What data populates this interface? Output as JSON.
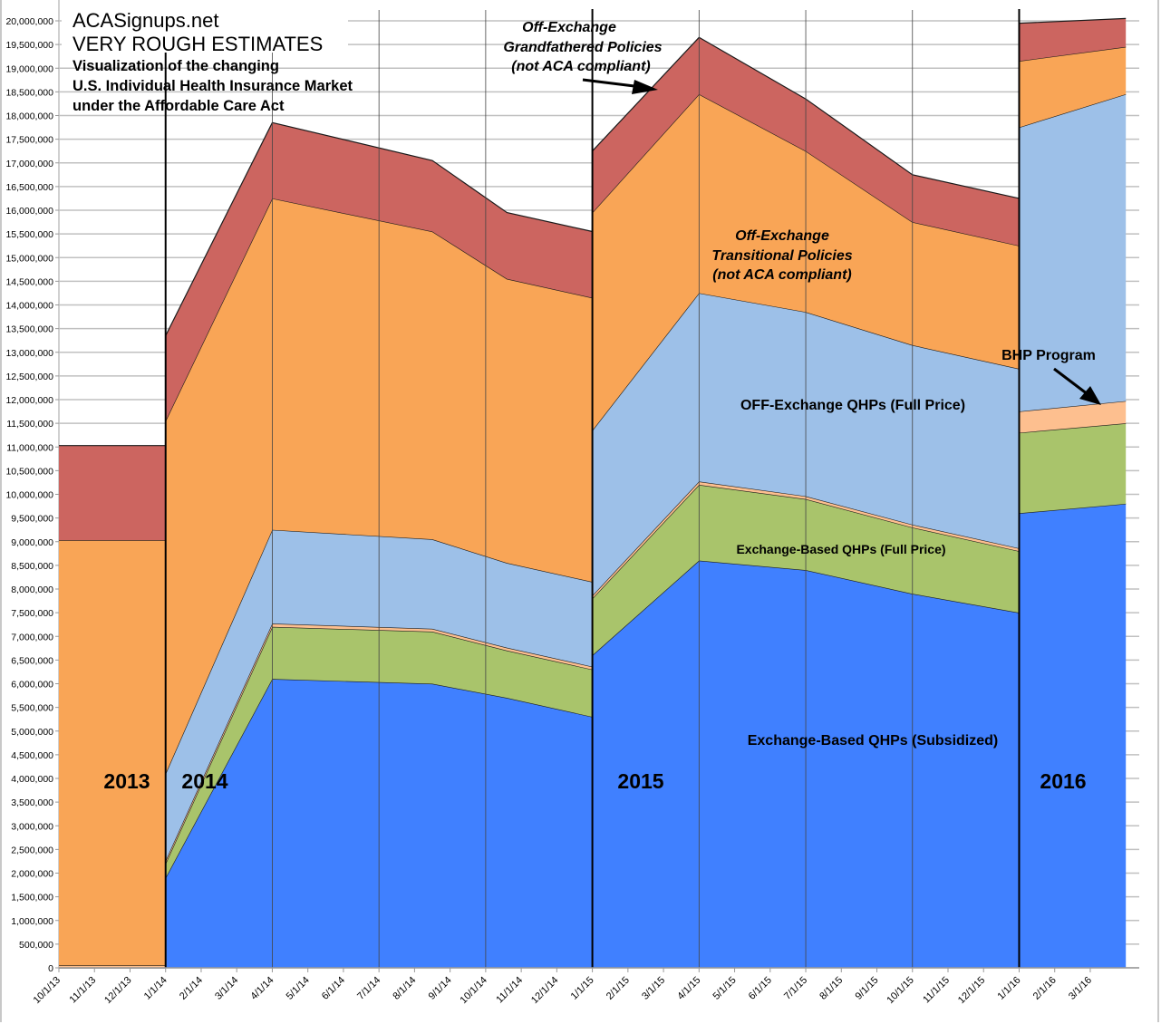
{
  "chart_data": {
    "type": "area",
    "title": "ACASignups.net",
    "subtitle": "VERY ROUGH ESTIMATES",
    "description_lines": [
      "Visualization of the changing",
      "U.S. Individual Health Insurance Market",
      "under the Affordable Care Act"
    ],
    "xlabel": "",
    "ylabel": "",
    "ylim": [
      0,
      20000000
    ],
    "y_ticks": [
      "0",
      "500,000",
      "1,000,000",
      "1,500,000",
      "2,000,000",
      "2,500,000",
      "3,000,000",
      "3,500,000",
      "4,000,000",
      "4,500,000",
      "5,000,000",
      "5,500,000",
      "6,000,000",
      "6,500,000",
      "7,000,000",
      "7,500,000",
      "8,000,000",
      "8,500,000",
      "9,000,000",
      "9,500,000",
      "10,000,000",
      "10,500,000",
      "11,000,000",
      "11,500,000",
      "12,000,000",
      "12,500,000",
      "13,000,000",
      "13,500,000",
      "14,000,000",
      "14,500,000",
      "15,000,000",
      "15,500,000",
      "16,000,000",
      "16,500,000",
      "17,000,000",
      "17,500,000",
      "18,000,000",
      "18,500,000",
      "19,000,000",
      "19,500,000",
      "20,000,000"
    ],
    "x_ticks": [
      "10/1/13",
      "11/1/13",
      "12/1/13",
      "1/1/14",
      "2/1/14",
      "3/1/14",
      "4/1/14",
      "5/1/14",
      "6/1/14",
      "7/1/14",
      "8/1/14",
      "9/1/14",
      "10/1/14",
      "11/1/14",
      "12/1/14",
      "1/1/15",
      "2/1/15",
      "3/1/15",
      "4/1/15",
      "5/1/15",
      "6/1/15",
      "7/1/15",
      "8/1/15",
      "9/1/15",
      "10/1/15",
      "11/1/15",
      "12/1/15",
      "1/1/16",
      "2/1/16",
      "3/1/16"
    ],
    "grid": true,
    "stacked": true,
    "series_order": [
      "subsidized",
      "exchange_full",
      "bhp",
      "off_exchange_qhp",
      "transitional",
      "grandfathered"
    ],
    "series": [
      {
        "key": "subsidized",
        "name": "Exchange-Based QHPs (Subsidized)",
        "color": "#4080ff"
      },
      {
        "key": "exchange_full",
        "name": "Exchange-Based QHPs (Full Price)",
        "color": "#a9c46b"
      },
      {
        "key": "bhp",
        "name": "BHP Program",
        "color": "#fdbf8f"
      },
      {
        "key": "off_exchange_qhp",
        "name": "OFF-Exchange QHPs (Full Price)",
        "color": "#9dc0e8"
      },
      {
        "key": "transitional",
        "name": "Off-Exchange Transitional Policies (not ACA compliant)",
        "color": "#f9a556"
      },
      {
        "key": "grandfathered",
        "name": "Off-Exchange Grandfathered Policies (not ACA compliant)",
        "color": "#cc6560"
      }
    ],
    "segments": [
      {
        "year": "2013",
        "x_months": [
          0,
          3
        ],
        "tops": {
          "subsidized": [
            0,
            0
          ],
          "exchange_full": [
            0,
            0
          ],
          "bhp": [
            50000,
            50000
          ],
          "off_exchange_qhp": [
            50000,
            50000
          ],
          "transitional": [
            9030000,
            9030000
          ],
          "grandfathered": [
            11030000,
            11030000
          ]
        }
      },
      {
        "year": "2014",
        "x_months": [
          3,
          6,
          10.5,
          12.6,
          15
        ],
        "tops": {
          "subsidized": [
            1900000,
            6100000,
            6000000,
            5700000,
            5300000
          ],
          "exchange_full": [
            2200000,
            7200000,
            7100000,
            6700000,
            6300000
          ],
          "bhp": [
            2260000,
            7270000,
            7160000,
            6760000,
            6360000
          ],
          "off_exchange_qhp": [
            4100000,
            9250000,
            9050000,
            8550000,
            8150000
          ],
          "transitional": [
            11550000,
            16250000,
            15550000,
            14550000,
            14150000
          ],
          "grandfathered": [
            13350000,
            17850000,
            17050000,
            15950000,
            15550000
          ]
        }
      },
      {
        "year": "2015",
        "x_months": [
          15,
          18,
          21,
          24,
          27
        ],
        "tops": {
          "subsidized": [
            6600000,
            8600000,
            8400000,
            7900000,
            7500000
          ],
          "exchange_full": [
            7800000,
            10200000,
            9900000,
            9300000,
            8800000
          ],
          "bhp": [
            7860000,
            10270000,
            9960000,
            9360000,
            8860000
          ],
          "off_exchange_qhp": [
            11350000,
            14250000,
            13850000,
            13150000,
            12650000
          ],
          "transitional": [
            15950000,
            18450000,
            17250000,
            15750000,
            15250000
          ],
          "grandfathered": [
            17250000,
            19650000,
            18350000,
            16750000,
            16250000
          ]
        }
      },
      {
        "year": "2016",
        "x_months": [
          27,
          30
        ],
        "tops": {
          "subsidized": [
            9600000,
            9800000
          ],
          "exchange_full": [
            11300000,
            11500000
          ],
          "bhp": [
            11750000,
            11970000
          ],
          "off_exchange_qhp": [
            17750000,
            18450000
          ],
          "transitional": [
            19150000,
            19450000
          ],
          "grandfathered": [
            19950000,
            20050000
          ]
        }
      }
    ],
    "annotations": {
      "grandfathered": [
        "Off-Exchange",
        "Grandfathered Policies",
        "(not ACA compliant)"
      ],
      "transitional": [
        "Off-Exchange",
        "Transitional Policies",
        "(not ACA compliant)"
      ],
      "off_exchange_qhp": "OFF-Exchange QHPs (Full Price)",
      "exchange_full": "Exchange-Based QHPs (Full Price)",
      "subsidized": "Exchange-Based QHPs (Subsidized)",
      "bhp": "BHP Program"
    },
    "year_labels": [
      "2013",
      "2014",
      "2015",
      "2016"
    ]
  }
}
